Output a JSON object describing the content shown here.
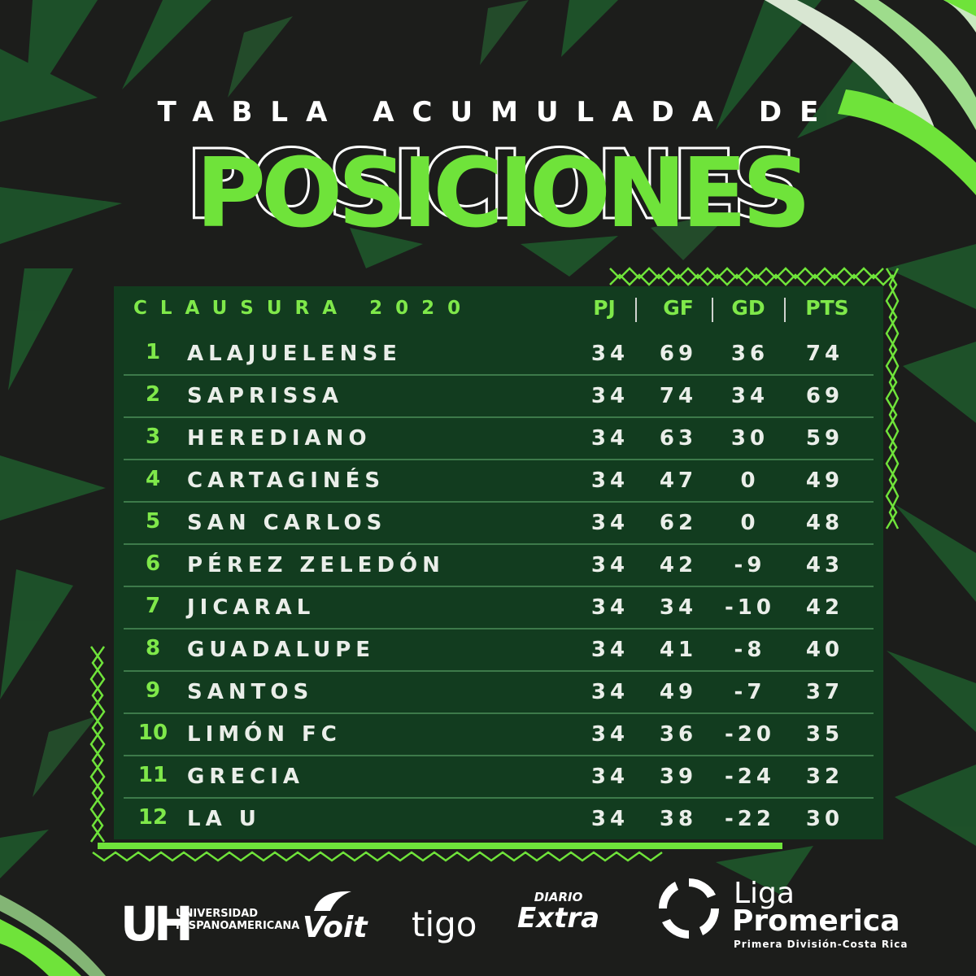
{
  "header": {
    "subtitle": "TABLA ACUMULADA DE",
    "title": "POSICIONES"
  },
  "table": {
    "season": "CLAUSURA 2020",
    "columns": [
      "PJ",
      "GF",
      "GD",
      "PTS"
    ],
    "rows": [
      {
        "pos": "1",
        "team": "ALAJUELENSE",
        "pj": "34",
        "gf": "69",
        "gd": "36",
        "pts": "74"
      },
      {
        "pos": "2",
        "team": "SAPRISSA",
        "pj": "34",
        "gf": "74",
        "gd": "34",
        "pts": "69"
      },
      {
        "pos": "3",
        "team": "HEREDIANO",
        "pj": "34",
        "gf": "63",
        "gd": "30",
        "pts": "59"
      },
      {
        "pos": "4",
        "team": "CARTAGINÉS",
        "pj": "34",
        "gf": "47",
        "gd": "0",
        "pts": "49"
      },
      {
        "pos": "5",
        "team": "SAN CARLOS",
        "pj": "34",
        "gf": "62",
        "gd": "0",
        "pts": "48"
      },
      {
        "pos": "6",
        "team": "PÉREZ ZELEDÓN",
        "pj": "34",
        "gf": "42",
        "gd": "-9",
        "pts": "43"
      },
      {
        "pos": "7",
        "team": "JICARAL",
        "pj": "34",
        "gf": "34",
        "gd": "-10",
        "pts": "42"
      },
      {
        "pos": "8",
        "team": "GUADALUPE",
        "pj": "34",
        "gf": "41",
        "gd": "-8",
        "pts": "40"
      },
      {
        "pos": "9",
        "team": "SANTOS",
        "pj": "34",
        "gf": "49",
        "gd": "-7",
        "pts": "37"
      },
      {
        "pos": "10",
        "team": "LIMÓN FC",
        "pj": "34",
        "gf": "36",
        "gd": "-20",
        "pts": "35"
      },
      {
        "pos": "11",
        "team": "GRECIA",
        "pj": "34",
        "gf": "39",
        "gd": "-24",
        "pts": "32"
      },
      {
        "pos": "12",
        "team": "LA U",
        "pj": "34",
        "gf": "38",
        "gd": "-22",
        "pts": "30"
      }
    ]
  },
  "sponsors": {
    "uh_mark": "UH",
    "uh_line1": "UNIVERSIDAD",
    "uh_line2": "HISPANOAMERICANA",
    "voit": "Voit",
    "tigo": "tigo",
    "diario_top": "DIARIO",
    "diario_bottom": "Extra",
    "liga_line1": "Liga",
    "liga_line2": "Promerica",
    "liga_line3": "Primera División-Costa Rica"
  },
  "colors": {
    "accent_green": "#7fe84a",
    "panel_green": "#123c1f",
    "background": "#1c1d1b"
  }
}
